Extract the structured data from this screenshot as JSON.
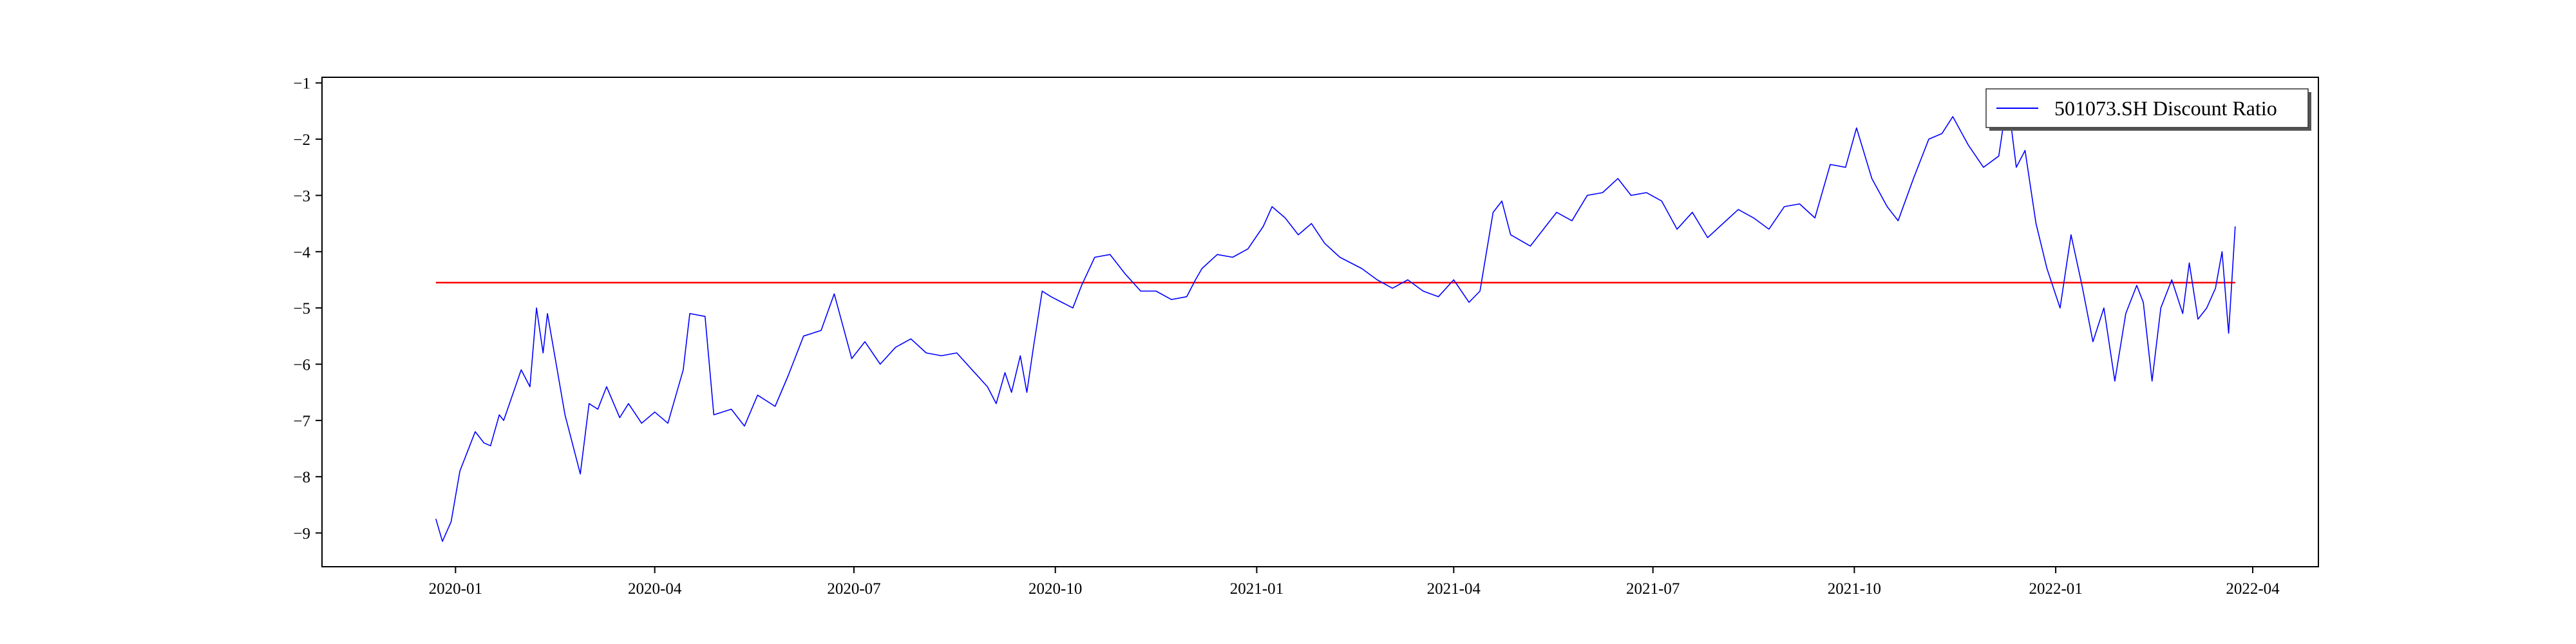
{
  "chart_data": {
    "type": "line",
    "title": "",
    "xlabel": "",
    "ylabel": "",
    "xlim": [
      "2019-11-01",
      "2022-05-01"
    ],
    "ylim": [
      -9.6,
      -0.9
    ],
    "x_ticks": [
      "2020-01",
      "2020-04",
      "2020-07",
      "2020-10",
      "2021-01",
      "2021-04",
      "2021-07",
      "2021-10",
      "2022-01",
      "2022-04"
    ],
    "y_ticks": [
      -1,
      -2,
      -3,
      -4,
      -5,
      -6,
      -7,
      -8,
      -9
    ],
    "grid": false,
    "legend": {
      "position": "upper right",
      "entries": [
        "501073.SH Discount Ratio"
      ]
    },
    "colors": {
      "series": "#0000ff",
      "reference": "#ff0000"
    },
    "reference_line": {
      "y": -4.55,
      "x_start": "2019-12-23",
      "x_end": "2022-03-24"
    },
    "series": [
      {
        "name": "501073.SH Discount Ratio",
        "points": [
          [
            "2019-12-23",
            -8.75
          ],
          [
            "2019-12-26",
            -9.15
          ],
          [
            "2019-12-30",
            -8.8
          ],
          [
            "2020-01-03",
            -7.9
          ],
          [
            "2020-01-07",
            -7.5
          ],
          [
            "2020-01-10",
            -7.2
          ],
          [
            "2020-01-14",
            -7.4
          ],
          [
            "2020-01-17",
            -7.45
          ],
          [
            "2020-01-21",
            -6.9
          ],
          [
            "2020-01-23",
            -7.0
          ],
          [
            "2020-01-31",
            -6.1
          ],
          [
            "2020-02-04",
            -6.4
          ],
          [
            "2020-02-07",
            -5.0
          ],
          [
            "2020-02-10",
            -5.8
          ],
          [
            "2020-02-12",
            -5.1
          ],
          [
            "2020-02-20",
            -6.9
          ],
          [
            "2020-02-27",
            -7.95
          ],
          [
            "2020-03-02",
            -6.7
          ],
          [
            "2020-03-06",
            -6.8
          ],
          [
            "2020-03-10",
            -6.4
          ],
          [
            "2020-03-16",
            -6.95
          ],
          [
            "2020-03-20",
            -6.7
          ],
          [
            "2020-03-26",
            -7.05
          ],
          [
            "2020-04-01",
            -6.85
          ],
          [
            "2020-04-07",
            -7.05
          ],
          [
            "2020-04-14",
            -6.1
          ],
          [
            "2020-04-17",
            -5.1
          ],
          [
            "2020-04-24",
            -5.15
          ],
          [
            "2020-04-28",
            -6.9
          ],
          [
            "2020-05-06",
            -6.8
          ],
          [
            "2020-05-12",
            -7.1
          ],
          [
            "2020-05-18",
            -6.55
          ],
          [
            "2020-05-26",
            -6.75
          ],
          [
            "2020-06-01",
            -6.2
          ],
          [
            "2020-06-08",
            -5.5
          ],
          [
            "2020-06-12",
            -5.45
          ],
          [
            "2020-06-16",
            -5.4
          ],
          [
            "2020-06-22",
            -4.75
          ],
          [
            "2020-06-30",
            -5.9
          ],
          [
            "2020-07-06",
            -5.6
          ],
          [
            "2020-07-13",
            -6.0
          ],
          [
            "2020-07-20",
            -5.7
          ],
          [
            "2020-07-27",
            -5.55
          ],
          [
            "2020-08-03",
            -5.8
          ],
          [
            "2020-08-10",
            -5.85
          ],
          [
            "2020-08-17",
            -5.8
          ],
          [
            "2020-08-24",
            -6.1
          ],
          [
            "2020-08-31",
            -6.4
          ],
          [
            "2020-09-04",
            -6.7
          ],
          [
            "2020-09-08",
            -6.15
          ],
          [
            "2020-09-11",
            -6.5
          ],
          [
            "2020-09-15",
            -5.85
          ],
          [
            "2020-09-18",
            -6.5
          ],
          [
            "2020-09-21",
            -5.7
          ],
          [
            "2020-09-25",
            -4.7
          ],
          [
            "2020-09-29",
            -4.8
          ],
          [
            "2020-10-09",
            -5.0
          ],
          [
            "2020-10-13",
            -4.6
          ],
          [
            "2020-10-19",
            -4.1
          ],
          [
            "2020-10-26",
            -4.05
          ],
          [
            "2020-11-02",
            -4.4
          ],
          [
            "2020-11-09",
            -4.7
          ],
          [
            "2020-11-16",
            -4.7
          ],
          [
            "2020-11-23",
            -4.85
          ],
          [
            "2020-11-30",
            -4.8
          ],
          [
            "2020-12-04",
            -4.5
          ],
          [
            "2020-12-07",
            -4.3
          ],
          [
            "2020-12-14",
            -4.05
          ],
          [
            "2020-12-21",
            -4.1
          ],
          [
            "2020-12-28",
            -3.95
          ],
          [
            "2021-01-04",
            -3.55
          ],
          [
            "2021-01-08",
            -3.2
          ],
          [
            "2021-01-14",
            -3.4
          ],
          [
            "2021-01-20",
            -3.7
          ],
          [
            "2021-01-26",
            -3.5
          ],
          [
            "2021-02-01",
            -3.85
          ],
          [
            "2021-02-08",
            -4.1
          ],
          [
            "2021-02-18",
            -4.3
          ],
          [
            "2021-02-25",
            -4.5
          ],
          [
            "2021-03-04",
            -4.65
          ],
          [
            "2021-03-11",
            -4.5
          ],
          [
            "2021-03-18",
            -4.7
          ],
          [
            "2021-03-25",
            -4.8
          ],
          [
            "2021-04-01",
            -4.5
          ],
          [
            "2021-04-08",
            -4.9
          ],
          [
            "2021-04-13",
            -4.7
          ],
          [
            "2021-04-19",
            -3.3
          ],
          [
            "2021-04-23",
            -3.1
          ],
          [
            "2021-04-27",
            -3.7
          ],
          [
            "2021-05-06",
            -3.9
          ],
          [
            "2021-05-12",
            -3.6
          ],
          [
            "2021-05-18",
            -3.3
          ],
          [
            "2021-05-25",
            -3.45
          ],
          [
            "2021-06-01",
            -3.0
          ],
          [
            "2021-06-08",
            -2.95
          ],
          [
            "2021-06-15",
            -2.7
          ],
          [
            "2021-06-21",
            -3.0
          ],
          [
            "2021-06-28",
            -2.95
          ],
          [
            "2021-07-05",
            -3.1
          ],
          [
            "2021-07-12",
            -3.6
          ],
          [
            "2021-07-19",
            -3.3
          ],
          [
            "2021-07-26",
            -3.75
          ],
          [
            "2021-08-02",
            -3.5
          ],
          [
            "2021-08-09",
            -3.25
          ],
          [
            "2021-08-16",
            -3.4
          ],
          [
            "2021-08-23",
            -3.6
          ],
          [
            "2021-08-30",
            -3.2
          ],
          [
            "2021-09-06",
            -3.15
          ],
          [
            "2021-09-13",
            -3.4
          ],
          [
            "2021-09-20",
            -2.45
          ],
          [
            "2021-09-27",
            -2.5
          ],
          [
            "2021-10-02",
            -1.8
          ],
          [
            "2021-10-09",
            -2.7
          ],
          [
            "2021-10-16",
            -3.2
          ],
          [
            "2021-10-21",
            -3.45
          ],
          [
            "2021-10-28",
            -2.7
          ],
          [
            "2021-11-04",
            -2.0
          ],
          [
            "2021-11-10",
            -1.9
          ],
          [
            "2021-11-15",
            -1.6
          ],
          [
            "2021-11-22",
            -2.1
          ],
          [
            "2021-11-29",
            -2.5
          ],
          [
            "2021-12-06",
            -2.3
          ],
          [
            "2021-12-10",
            -1.25
          ],
          [
            "2021-12-14",
            -2.5
          ],
          [
            "2021-12-18",
            -2.2
          ],
          [
            "2021-12-23",
            -3.5
          ],
          [
            "2021-12-28",
            -4.3
          ],
          [
            "2022-01-03",
            -5.0
          ],
          [
            "2022-01-08",
            -3.7
          ],
          [
            "2022-01-13",
            -4.6
          ],
          [
            "2022-01-18",
            -5.6
          ],
          [
            "2022-01-23",
            -5.0
          ],
          [
            "2022-01-28",
            -6.3
          ],
          [
            "2022-02-02",
            -5.1
          ],
          [
            "2022-02-07",
            -4.6
          ],
          [
            "2022-02-10",
            -4.9
          ],
          [
            "2022-02-14",
            -6.3
          ],
          [
            "2022-02-18",
            -5.0
          ],
          [
            "2022-02-23",
            -4.5
          ],
          [
            "2022-02-28",
            -5.1
          ],
          [
            "2022-03-03",
            -4.2
          ],
          [
            "2022-03-07",
            -5.2
          ],
          [
            "2022-03-11",
            -5.0
          ],
          [
            "2022-03-15",
            -4.65
          ],
          [
            "2022-03-18",
            -4.0
          ],
          [
            "2022-03-21",
            -5.45
          ],
          [
            "2022-03-24",
            -3.55
          ]
        ]
      }
    ]
  }
}
